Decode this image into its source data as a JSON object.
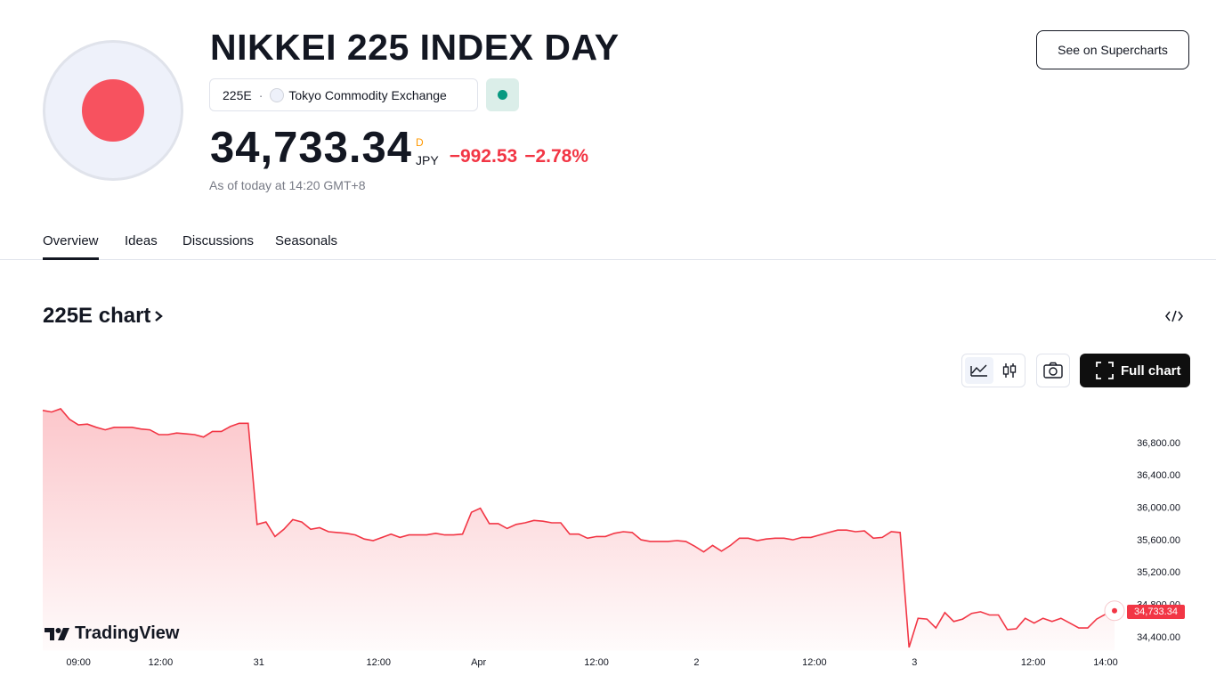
{
  "header": {
    "title": "NIKKEI 225 INDEX DAY",
    "symbol": "225E",
    "exchange": "Tokyo Commodity Exchange",
    "price": "34,733.34",
    "price_suffix": "D",
    "currency": "JPY",
    "change": "−992.53",
    "change_percent": "−2.78%",
    "as_of": "As of today at 14:20 GMT+8",
    "button": "See on Supercharts"
  },
  "tabs": [
    "Overview",
    "Ideas",
    "Discussions",
    "Seasonals"
  ],
  "chart_section": {
    "heading": "225E chart",
    "full_chart": "Full chart",
    "brand": "TradingView"
  },
  "chart_data": {
    "type": "line",
    "color": "#f23645",
    "values": [
      37210,
      37190,
      37230,
      37100,
      37030,
      37040,
      37000,
      36970,
      37000,
      37000,
      37000,
      36980,
      36970,
      36910,
      36910,
      36930,
      36920,
      36910,
      36880,
      36950,
      36950,
      37010,
      37050,
      37050,
      35800,
      35830,
      35650,
      35740,
      35860,
      35830,
      35740,
      35760,
      35710,
      35700,
      35690,
      35670,
      35620,
      35600,
      35640,
      35680,
      35640,
      35670,
      35670,
      35670,
      35690,
      35670,
      35670,
      35680,
      35950,
      36000,
      35810,
      35810,
      35750,
      35800,
      35820,
      35850,
      35840,
      35820,
      35820,
      35680,
      35680,
      35630,
      35650,
      35650,
      35690,
      35710,
      35700,
      35610,
      35590,
      35590,
      35590,
      35600,
      35590,
      35530,
      35460,
      35540,
      35470,
      35540,
      35630,
      35630,
      35600,
      35620,
      35630,
      35630,
      35610,
      35640,
      35640,
      35670,
      35700,
      35730,
      35730,
      35710,
      35720,
      35630,
      35640,
      35710,
      35700,
      34280,
      34640,
      34630,
      34520,
      34710,
      34600,
      34630,
      34700,
      34720,
      34680,
      34680,
      34500,
      34510,
      34640,
      34580,
      34640,
      34600,
      34640,
      34580,
      34520,
      34520,
      34630,
      34690,
      34733.34
    ],
    "xlim": [
      0,
      120
    ],
    "xticks": [
      {
        "value": 4,
        "label": "09:00"
      },
      {
        "value": 13.2,
        "label": "12:00"
      },
      {
        "value": 24.2,
        "label": "31"
      },
      {
        "value": 37.6,
        "label": "12:00"
      },
      {
        "value": 48.8,
        "label": "Apr"
      },
      {
        "value": 62,
        "label": "12:00"
      },
      {
        "value": 73.2,
        "label": "2"
      },
      {
        "value": 86.4,
        "label": "12:00"
      },
      {
        "value": 97.6,
        "label": "3"
      },
      {
        "value": 110.9,
        "label": "12:00"
      },
      {
        "value": 119,
        "label": "14:00"
      }
    ],
    "ylim": [
      34240,
      37300
    ],
    "yticks": [
      {
        "value": 34400,
        "label": "34,400.00"
      },
      {
        "value": 34800,
        "label": "34,800.00"
      },
      {
        "value": 35200,
        "label": "35,200.00"
      },
      {
        "value": 35600,
        "label": "35,600.00"
      },
      {
        "value": 36000,
        "label": "36,000.00"
      },
      {
        "value": 36400,
        "label": "36,400.00"
      },
      {
        "value": 36800,
        "label": "36,800.00"
      }
    ]
  }
}
